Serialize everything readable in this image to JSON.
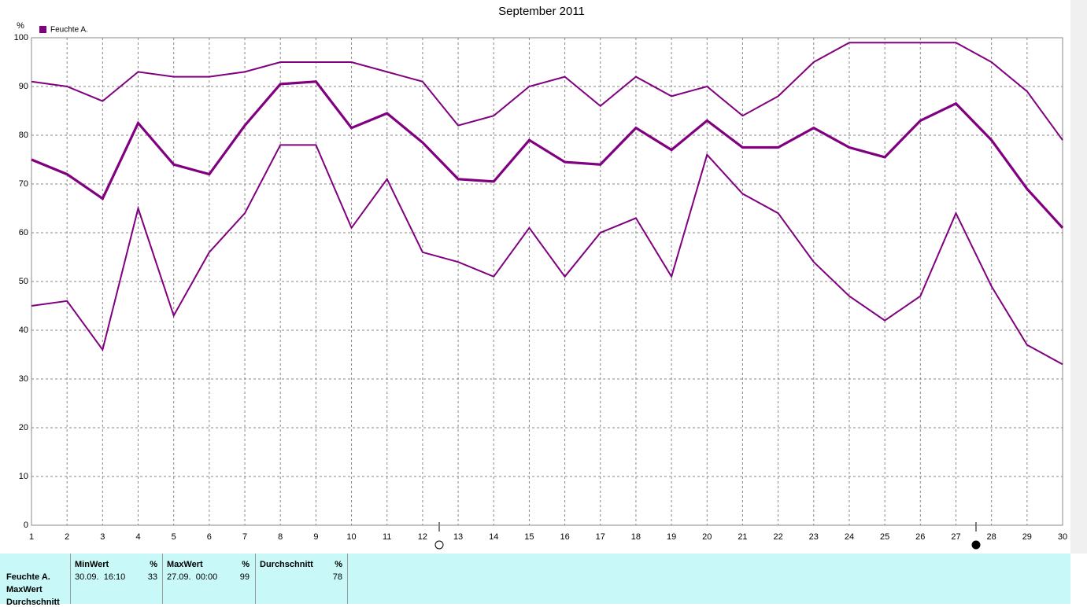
{
  "chart_data": {
    "type": "line",
    "title": "September 2011",
    "y_label": "%",
    "legend": "Feuchte A.",
    "color": "#800080",
    "grid": true,
    "x": [
      1,
      2,
      3,
      4,
      5,
      6,
      7,
      8,
      9,
      10,
      11,
      12,
      13,
      14,
      15,
      16,
      17,
      18,
      19,
      20,
      21,
      22,
      23,
      24,
      25,
      26,
      27,
      28,
      29,
      30
    ],
    "xlim": [
      1,
      30
    ],
    "xticks": [
      1,
      2,
      3,
      4,
      5,
      6,
      7,
      8,
      9,
      10,
      11,
      12,
      13,
      14,
      15,
      16,
      17,
      18,
      19,
      20,
      21,
      22,
      23,
      24,
      25,
      26,
      27,
      28,
      29,
      30
    ],
    "ylim": [
      0,
      100
    ],
    "yticks": [
      0,
      10,
      20,
      30,
      40,
      50,
      60,
      70,
      80,
      90,
      100
    ],
    "series": [
      {
        "name": "MaxWert",
        "color": "#800080",
        "values": [
          91,
          90,
          87,
          93,
          92,
          92,
          93,
          95,
          95,
          95,
          93,
          91,
          82,
          84,
          90,
          92,
          86,
          92,
          88,
          90,
          84,
          88,
          95,
          99,
          99,
          99,
          99,
          95,
          89,
          79
        ]
      },
      {
        "name": "Durchschnitt",
        "color": "#800080",
        "values": [
          75,
          72,
          67,
          82.5,
          74,
          72,
          82,
          90.5,
          91,
          81.5,
          84.5,
          78.5,
          71,
          70.5,
          79,
          74.5,
          74,
          81.5,
          77,
          83,
          77.5,
          77.5,
          81.5,
          77.5,
          75.5,
          83,
          86.5,
          79,
          69,
          61
        ]
      },
      {
        "name": "MinWert",
        "color": "#800080",
        "values": [
          45,
          46,
          36,
          65,
          43,
          56,
          64,
          78,
          78,
          61,
          71,
          56,
          54,
          51,
          61,
          51,
          60,
          63,
          51,
          76,
          68,
          64,
          54,
          47,
          42,
          47,
          64,
          49,
          37,
          33
        ]
      }
    ]
  },
  "table": {
    "row_labels": [
      "Feuchte A.",
      "MaxWert",
      "Durchschnitt"
    ],
    "columns": [
      {
        "header": "MinWert",
        "unit": "%",
        "time": "30.09.  16:10",
        "value": 33
      },
      {
        "header": "MaxWert",
        "unit": "%",
        "time": "27.09.  00:00",
        "value": 99
      },
      {
        "header": "Durchschnitt",
        "unit": "%",
        "value": 78
      }
    ]
  }
}
